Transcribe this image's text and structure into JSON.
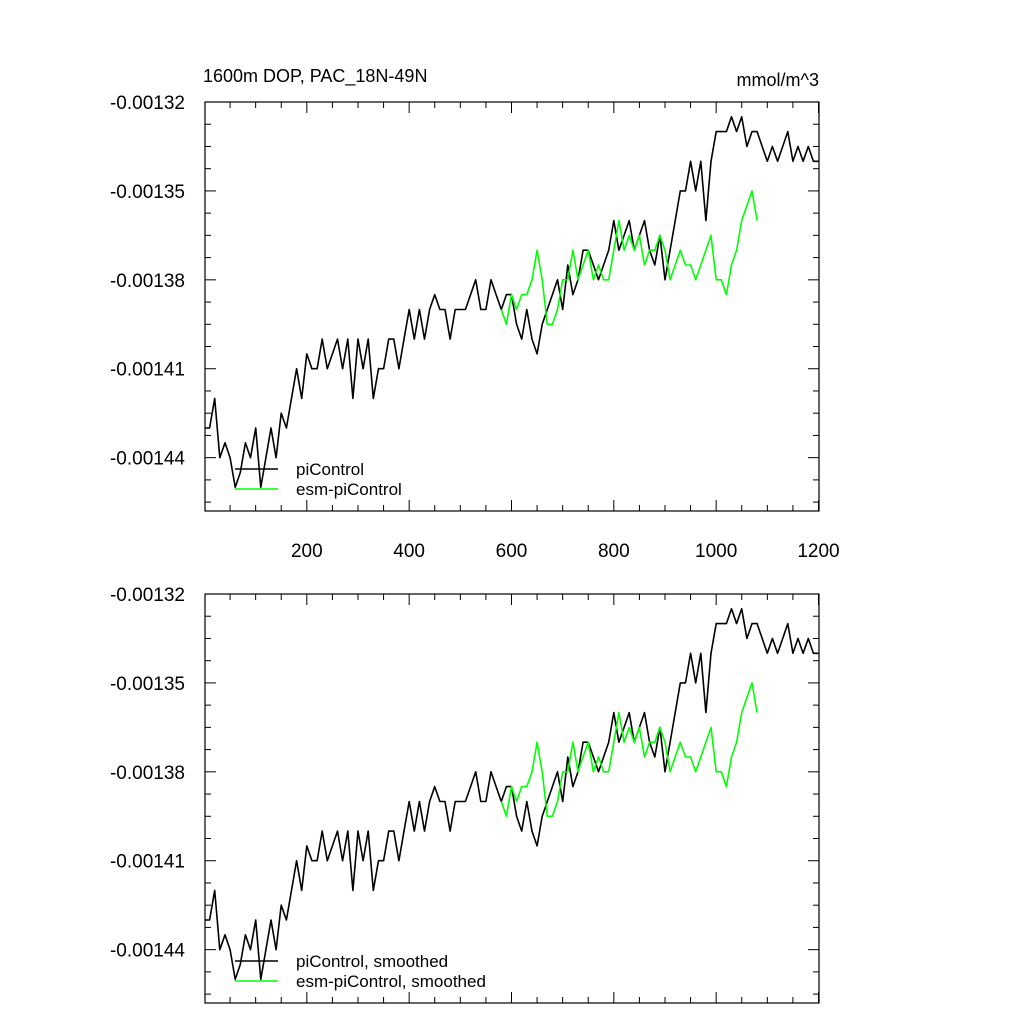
{
  "chart_data": [
    {
      "type": "line",
      "title": "1600m DOP, PAC_18N-49N",
      "units": "mmol/m^3",
      "xlim": [
        1,
        1201
      ],
      "ylim": [
        -0.001458,
        -0.00132
      ],
      "x_ticks": [
        200,
        400,
        600,
        800,
        1000,
        1200
      ],
      "x_tick_labels": [
        "200",
        "400",
        "600",
        "800",
        "1000",
        "1200"
      ],
      "y_ticks": [
        -0.00132,
        -0.00135,
        -0.00138,
        -0.00141,
        -0.00144
      ],
      "y_tick_labels": [
        "-0.00132",
        "-0.00135",
        "-0.00138",
        "-0.00141",
        "-0.00144"
      ],
      "legend_position": "bottom-left",
      "series": [
        {
          "name": "piControl",
          "color": "#000000",
          "x": [
            1,
            10,
            20,
            30,
            40,
            50,
            60,
            70,
            80,
            90,
            100,
            110,
            120,
            130,
            140,
            150,
            160,
            170,
            180,
            190,
            200,
            210,
            220,
            230,
            240,
            250,
            260,
            270,
            280,
            290,
            300,
            310,
            320,
            330,
            340,
            350,
            360,
            370,
            380,
            390,
            400,
            410,
            420,
            430,
            440,
            450,
            460,
            470,
            480,
            490,
            500,
            510,
            520,
            530,
            540,
            550,
            560,
            570,
            580,
            590,
            600,
            610,
            620,
            630,
            640,
            650,
            660,
            670,
            680,
            690,
            700,
            710,
            720,
            730,
            740,
            750,
            760,
            770,
            780,
            790,
            800,
            810,
            820,
            830,
            840,
            850,
            860,
            870,
            880,
            890,
            900,
            910,
            920,
            930,
            940,
            950,
            960,
            970,
            980,
            990,
            1000,
            1010,
            1020,
            1030,
            1040,
            1050,
            1060,
            1070,
            1080,
            1090,
            1100,
            1110,
            1120,
            1130,
            1140,
            1150,
            1160,
            1170,
            1180,
            1190,
            1200
          ],
          "values": [
            -0.00143,
            -0.00143,
            -0.00142,
            -0.00144,
            -0.001435,
            -0.00144,
            -0.00145,
            -0.001445,
            -0.001435,
            -0.00144,
            -0.00143,
            -0.00145,
            -0.00144,
            -0.00143,
            -0.00144,
            -0.001425,
            -0.00143,
            -0.00142,
            -0.00141,
            -0.00142,
            -0.001405,
            -0.00141,
            -0.00141,
            -0.0014,
            -0.00141,
            -0.001405,
            -0.0014,
            -0.00141,
            -0.0014,
            -0.00142,
            -0.0014,
            -0.00141,
            -0.0014,
            -0.00142,
            -0.00141,
            -0.00141,
            -0.0014,
            -0.0014,
            -0.00141,
            -0.0014,
            -0.00139,
            -0.0014,
            -0.00139,
            -0.0014,
            -0.00139,
            -0.001385,
            -0.00139,
            -0.00139,
            -0.0014,
            -0.00139,
            -0.00139,
            -0.00139,
            -0.001385,
            -0.00138,
            -0.00139,
            -0.00139,
            -0.00138,
            -0.001385,
            -0.00139,
            -0.001385,
            -0.001385,
            -0.001395,
            -0.0014,
            -0.00139,
            -0.0014,
            -0.001405,
            -0.001395,
            -0.00139,
            -0.001385,
            -0.00138,
            -0.00139,
            -0.001375,
            -0.001385,
            -0.00138,
            -0.00137,
            -0.00137,
            -0.001375,
            -0.00138,
            -0.001375,
            -0.00137,
            -0.00136,
            -0.00137,
            -0.001365,
            -0.00136,
            -0.00137,
            -0.001365,
            -0.00136,
            -0.00137,
            -0.001375,
            -0.001365,
            -0.00138,
            -0.00137,
            -0.00136,
            -0.00135,
            -0.00135,
            -0.00134,
            -0.00135,
            -0.00134,
            -0.00136,
            -0.00134,
            -0.00133,
            -0.00133,
            -0.00133,
            -0.001325,
            -0.00133,
            -0.001325,
            -0.001335,
            -0.00133,
            -0.00133,
            -0.001335,
            -0.00134,
            -0.001335,
            -0.00134,
            -0.001335,
            -0.00133,
            -0.00134,
            -0.001335,
            -0.00134,
            -0.001335,
            -0.00134,
            -0.00134
          ]
        },
        {
          "name": "esm-piControl",
          "color": "#00ff00",
          "x": [
            580,
            590,
            600,
            610,
            620,
            630,
            640,
            650,
            660,
            670,
            680,
            690,
            700,
            710,
            720,
            730,
            740,
            750,
            760,
            770,
            780,
            790,
            800,
            810,
            820,
            830,
            840,
            850,
            860,
            870,
            880,
            890,
            900,
            910,
            920,
            930,
            940,
            950,
            960,
            970,
            980,
            990,
            1000,
            1010,
            1020,
            1030,
            1040,
            1050,
            1060,
            1070,
            1080
          ],
          "values": [
            -0.00139,
            -0.001395,
            -0.001385,
            -0.00139,
            -0.001385,
            -0.001385,
            -0.00138,
            -0.00137,
            -0.00138,
            -0.001395,
            -0.001395,
            -0.00139,
            -0.00138,
            -0.00138,
            -0.00137,
            -0.00138,
            -0.001375,
            -0.00137,
            -0.00138,
            -0.001375,
            -0.00138,
            -0.00138,
            -0.00137,
            -0.00136,
            -0.00137,
            -0.001365,
            -0.00137,
            -0.001365,
            -0.001375,
            -0.00137,
            -0.00137,
            -0.001365,
            -0.00137,
            -0.00138,
            -0.001375,
            -0.00137,
            -0.001375,
            -0.001375,
            -0.00138,
            -0.001375,
            -0.00137,
            -0.001365,
            -0.00138,
            -0.00138,
            -0.001385,
            -0.001375,
            -0.00137,
            -0.00136,
            -0.001355,
            -0.00135,
            -0.00136
          ]
        }
      ]
    },
    {
      "type": "line",
      "xlim": [
        1,
        1201
      ],
      "ylim": [
        -0.001458,
        -0.00132
      ],
      "x_ticks": [
        200,
        400,
        600,
        800,
        1000,
        1200
      ],
      "y_ticks": [
        -0.00132,
        -0.00135,
        -0.00138,
        -0.00141,
        -0.00144
      ],
      "y_tick_labels": [
        "-0.00132",
        "-0.00135",
        "-0.00138",
        "-0.00141",
        "-0.00144"
      ],
      "legend_position": "bottom-left",
      "series": [
        {
          "name": "piControl, smoothed",
          "color": "#000000",
          "x": [
            1,
            10,
            20,
            30,
            40,
            50,
            60,
            70,
            80,
            90,
            100,
            110,
            120,
            130,
            140,
            150,
            160,
            170,
            180,
            190,
            200,
            210,
            220,
            230,
            240,
            250,
            260,
            270,
            280,
            290,
            300,
            310,
            320,
            330,
            340,
            350,
            360,
            370,
            380,
            390,
            400,
            410,
            420,
            430,
            440,
            450,
            460,
            470,
            480,
            490,
            500,
            510,
            520,
            530,
            540,
            550,
            560,
            570,
            580,
            590,
            600,
            610,
            620,
            630,
            640,
            650,
            660,
            670,
            680,
            690,
            700,
            710,
            720,
            730,
            740,
            750,
            760,
            770,
            780,
            790,
            800,
            810,
            820,
            830,
            840,
            850,
            860,
            870,
            880,
            890,
            900,
            910,
            920,
            930,
            940,
            950,
            960,
            970,
            980,
            990,
            1000,
            1010,
            1020,
            1030,
            1040,
            1050,
            1060,
            1070,
            1080,
            1090,
            1100,
            1110,
            1120,
            1130,
            1140,
            1150,
            1160,
            1170,
            1180,
            1190,
            1200
          ],
          "values": [
            -0.00143,
            -0.00143,
            -0.00142,
            -0.00144,
            -0.001435,
            -0.00144,
            -0.00145,
            -0.001445,
            -0.001435,
            -0.00144,
            -0.00143,
            -0.00145,
            -0.00144,
            -0.00143,
            -0.00144,
            -0.001425,
            -0.00143,
            -0.00142,
            -0.00141,
            -0.00142,
            -0.001405,
            -0.00141,
            -0.00141,
            -0.0014,
            -0.00141,
            -0.001405,
            -0.0014,
            -0.00141,
            -0.0014,
            -0.00142,
            -0.0014,
            -0.00141,
            -0.0014,
            -0.00142,
            -0.00141,
            -0.00141,
            -0.0014,
            -0.0014,
            -0.00141,
            -0.0014,
            -0.00139,
            -0.0014,
            -0.00139,
            -0.0014,
            -0.00139,
            -0.001385,
            -0.00139,
            -0.00139,
            -0.0014,
            -0.00139,
            -0.00139,
            -0.00139,
            -0.001385,
            -0.00138,
            -0.00139,
            -0.00139,
            -0.00138,
            -0.001385,
            -0.00139,
            -0.001385,
            -0.001385,
            -0.001395,
            -0.0014,
            -0.00139,
            -0.0014,
            -0.001405,
            -0.001395,
            -0.00139,
            -0.001385,
            -0.00138,
            -0.00139,
            -0.001375,
            -0.001385,
            -0.00138,
            -0.00137,
            -0.00137,
            -0.001375,
            -0.00138,
            -0.001375,
            -0.00137,
            -0.00136,
            -0.00137,
            -0.001365,
            -0.00136,
            -0.00137,
            -0.001365,
            -0.00136,
            -0.00137,
            -0.001375,
            -0.001365,
            -0.00138,
            -0.00137,
            -0.00136,
            -0.00135,
            -0.00135,
            -0.00134,
            -0.00135,
            -0.00134,
            -0.00136,
            -0.00134,
            -0.00133,
            -0.00133,
            -0.00133,
            -0.001325,
            -0.00133,
            -0.001325,
            -0.001335,
            -0.00133,
            -0.00133,
            -0.001335,
            -0.00134,
            -0.001335,
            -0.00134,
            -0.001335,
            -0.00133,
            -0.00134,
            -0.001335,
            -0.00134,
            -0.001335,
            -0.00134,
            -0.00134
          ]
        },
        {
          "name": "esm-piControl, smoothed",
          "color": "#00ff00",
          "x": [
            580,
            590,
            600,
            610,
            620,
            630,
            640,
            650,
            660,
            670,
            680,
            690,
            700,
            710,
            720,
            730,
            740,
            750,
            760,
            770,
            780,
            790,
            800,
            810,
            820,
            830,
            840,
            850,
            860,
            870,
            880,
            890,
            900,
            910,
            920,
            930,
            940,
            950,
            960,
            970,
            980,
            990,
            1000,
            1010,
            1020,
            1030,
            1040,
            1050,
            1060,
            1070,
            1080
          ],
          "values": [
            -0.00139,
            -0.001395,
            -0.001385,
            -0.00139,
            -0.001385,
            -0.001385,
            -0.00138,
            -0.00137,
            -0.00138,
            -0.001395,
            -0.001395,
            -0.00139,
            -0.00138,
            -0.00138,
            -0.00137,
            -0.00138,
            -0.001375,
            -0.00137,
            -0.00138,
            -0.001375,
            -0.00138,
            -0.00138,
            -0.00137,
            -0.00136,
            -0.00137,
            -0.001365,
            -0.00137,
            -0.001365,
            -0.001375,
            -0.00137,
            -0.00137,
            -0.001365,
            -0.00137,
            -0.00138,
            -0.001375,
            -0.00137,
            -0.001375,
            -0.001375,
            -0.00138,
            -0.001375,
            -0.00137,
            -0.001365,
            -0.00138,
            -0.00138,
            -0.001385,
            -0.001375,
            -0.00137,
            -0.00136,
            -0.001355,
            -0.00135,
            -0.00136
          ]
        }
      ]
    }
  ]
}
